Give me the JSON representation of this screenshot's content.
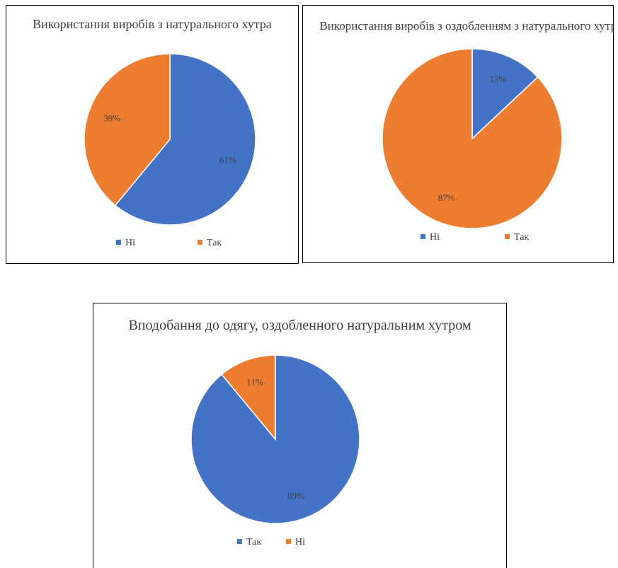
{
  "charts": [
    {
      "title": "Використання виробів з натурального хутра",
      "legend": [
        {
          "label": "Ні",
          "color": "#4472C4"
        },
        {
          "label": "Так",
          "color": "#ED7D31"
        }
      ]
    },
    {
      "title": "Використання виробів з оздобленням з натурального хутра",
      "legend": [
        {
          "label": "Ні",
          "color": "#4472C4"
        },
        {
          "label": "Так",
          "color": "#ED7D31"
        }
      ]
    },
    {
      "title": "Вподобання до одягу, оздобленного натуральним хутром",
      "legend": [
        {
          "label": "Так",
          "color": "#4472C4"
        },
        {
          "label": "Ні",
          "color": "#ED7D31"
        }
      ]
    }
  ],
  "chart_data": [
    {
      "type": "pie",
      "title": "Використання виробів з натурального хутра",
      "categories": [
        "Ні",
        "Так"
      ],
      "values": [
        61,
        39
      ],
      "labels": [
        "61%",
        "39%"
      ],
      "colors": [
        "#4472C4",
        "#ED7D31"
      ],
      "legend_position": "bottom"
    },
    {
      "type": "pie",
      "title": "Використання виробів з оздобленням з натурального хутра",
      "categories": [
        "Ні",
        "Так"
      ],
      "values": [
        13,
        87
      ],
      "labels": [
        "13%",
        "87%"
      ],
      "colors": [
        "#4472C4",
        "#ED7D31"
      ],
      "legend_position": "bottom"
    },
    {
      "type": "pie",
      "title": "Вподобання до одягу, оздобленного натуральним хутром",
      "categories": [
        "Так",
        "Ні"
      ],
      "values": [
        89,
        11
      ],
      "labels": [
        "89%",
        "11%"
      ],
      "colors": [
        "#4472C4",
        "#ED7D31"
      ],
      "legend_position": "bottom"
    }
  ]
}
